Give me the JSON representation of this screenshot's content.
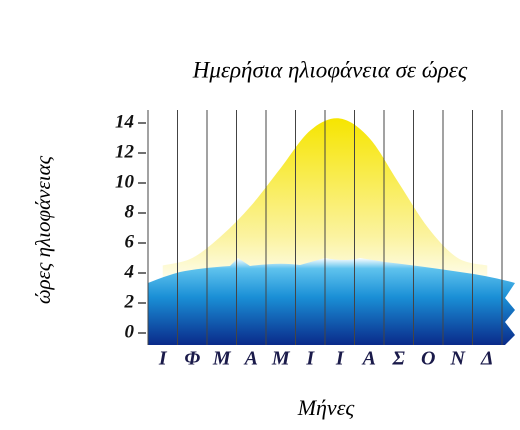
{
  "chart_data": {
    "type": "area",
    "title": "Ημερήσια ηλιοφάνεια σε ώρες",
    "y_label": "ώρες ηλιοφάνειας",
    "x_label": "Μήνες",
    "categories": [
      "Ι",
      "Φ",
      "Μ",
      "Α",
      "Μ",
      "Ι",
      "Ι",
      "Α",
      "Σ",
      "Ο",
      "Ν",
      "Δ"
    ],
    "values": [
      4.5,
      5,
      6.5,
      8.5,
      11,
      13.5,
      14.3,
      13,
      10,
      7,
      5,
      4.5
    ],
    "color": "#f6e500",
    "ylim": [
      0,
      14
    ],
    "yticks": [
      0,
      2,
      4,
      6,
      8,
      10,
      12,
      14
    ]
  }
}
